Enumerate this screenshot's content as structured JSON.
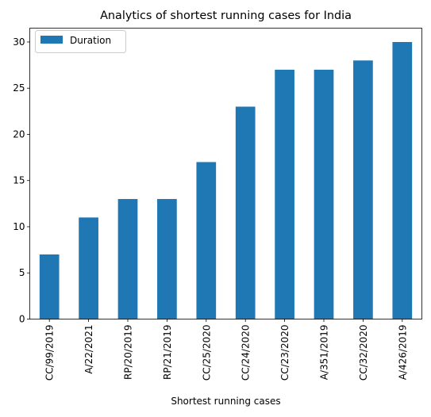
{
  "chart_data": {
    "type": "bar",
    "title": "Analytics of shortest running cases for India",
    "xlabel": "Shortest running cases",
    "ylabel": "",
    "categories": [
      "CC/99/2019",
      "A/22/2021",
      "RP/20/2019",
      "RP/21/2019",
      "CC/25/2020",
      "CC/24/2020",
      "CC/23/2020",
      "A/351/2019",
      "CC/32/2020",
      "A/426/2019"
    ],
    "series": [
      {
        "name": "Duration",
        "values": [
          7,
          11,
          13,
          13,
          17,
          23,
          27,
          27,
          28,
          30
        ],
        "color": "#1f77b4"
      }
    ],
    "ylim": [
      0,
      31.5
    ],
    "yticks": [
      0,
      5,
      10,
      15,
      20,
      25,
      30
    ],
    "grid": false,
    "legend_position": "top-left"
  }
}
